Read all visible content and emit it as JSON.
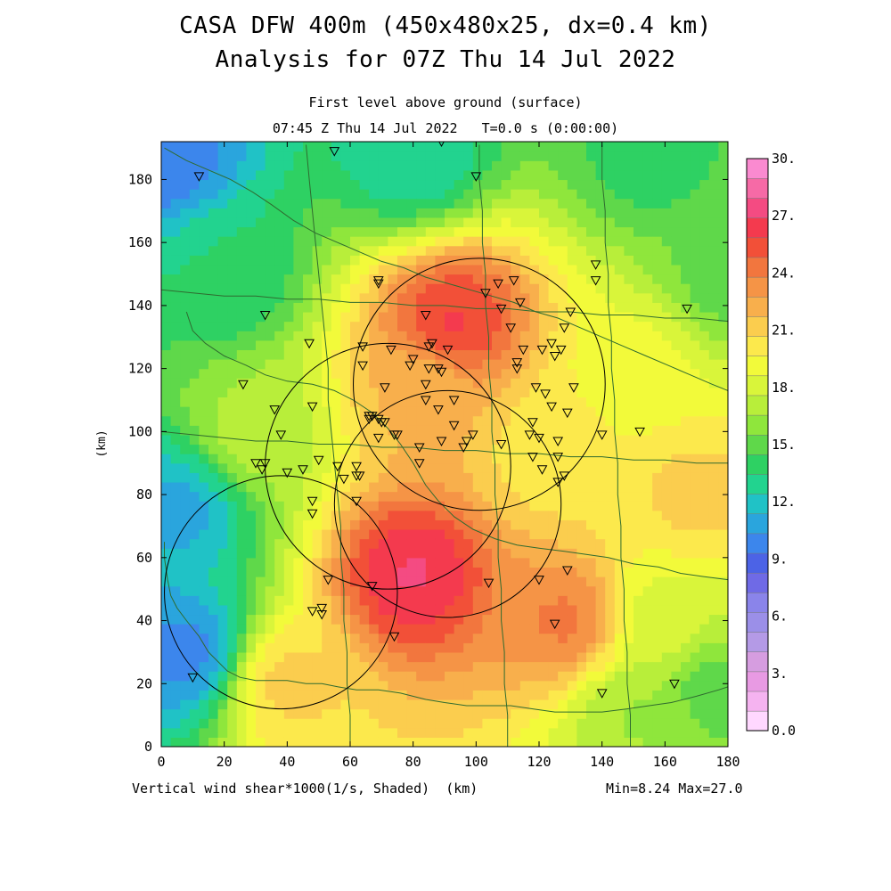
{
  "title_line1": "CASA DFW 400m (450x480x25, dx=0.4 km)",
  "title_line2": "Analysis for 07Z Thu 14 Jul 2022",
  "subtitle_line1": "First level above ground (surface)",
  "subtitle_line2": "07:45 Z Thu 14 Jul 2022   T=0.0 s (0:00:00)",
  "caption": "Vertical wind shear*1000(1/s, Shaded)  (km)",
  "minmax": "Min=8.24 Max=27.0",
  "chart_data": {
    "type": "heatmap",
    "xlabel": "(km)",
    "ylabel": "(km)",
    "xlim": [
      0,
      180
    ],
    "ylim": [
      0,
      192
    ],
    "x_ticks": [
      0,
      20,
      40,
      60,
      80,
      100,
      120,
      140,
      160,
      180
    ],
    "y_ticks": [
      0,
      20,
      40,
      60,
      80,
      100,
      120,
      140,
      160,
      180
    ],
    "colorbar": {
      "labels": [
        "0.0",
        "3.",
        "6.",
        "9.",
        "12.",
        "15.",
        "18.",
        "21.",
        "24.",
        "27.",
        "30."
      ],
      "colors": [
        "#ffd8ff",
        "#f5b3f0",
        "#e89ae3",
        "#d69de0",
        "#b49ae6",
        "#9b8fe8",
        "#8a84ea",
        "#6f6ae6",
        "#4c63e6",
        "#3c86ec",
        "#2aa5dd",
        "#20c2c6",
        "#22d38f",
        "#2ed163",
        "#5fd84a",
        "#8fe63c",
        "#b8ee3a",
        "#d9f53a",
        "#f2fa3a",
        "#fce94c",
        "#fbcd4e",
        "#f8af4c",
        "#f59446",
        "#f2763e",
        "#f25038",
        "#f43a4e",
        "#f44b82",
        "#f66aa6",
        "#fa8ad0"
      ]
    },
    "analysis_field": {
      "name": "Vertical wind shear*1000",
      "units": "1/s",
      "min": 8.24,
      "max": 27.0,
      "background": 17.0,
      "features": [
        {
          "x": 80,
          "y": 55,
          "peak": 27.0
        },
        {
          "x": 93,
          "y": 135,
          "peak": 26.0
        },
        {
          "x": 83,
          "y": 113,
          "peak": 22.0
        },
        {
          "x": 128,
          "y": 40,
          "peak": 24.0
        },
        {
          "x": 125,
          "y": 95,
          "peak": 20.0
        },
        {
          "x": 150,
          "y": 120,
          "peak": 19.0
        },
        {
          "x": 170,
          "y": 80,
          "peak": 21.0
        },
        {
          "x": 160,
          "y": 40,
          "peak": 18.0
        },
        {
          "x": 30,
          "y": 100,
          "peak": 17.0
        },
        {
          "x": 5,
          "y": 75,
          "peak": 11.0
        },
        {
          "x": 8,
          "y": 30,
          "peak": 10.0
        },
        {
          "x": 20,
          "y": 150,
          "peak": 13.5
        },
        {
          "x": 0,
          "y": 188,
          "peak": 9.5
        },
        {
          "x": 80,
          "y": 188,
          "peak": 12.5
        },
        {
          "x": 155,
          "y": 188,
          "peak": 14.0
        },
        {
          "x": 175,
          "y": 18,
          "peak": 15.0
        },
        {
          "x": 150,
          "y": 10,
          "peak": 16.5
        },
        {
          "x": 40,
          "y": 20,
          "peak": 21.0
        },
        {
          "x": 180,
          "y": 150,
          "peak": 15.0
        }
      ]
    },
    "radar_rings": [
      {
        "x": 91,
        "y": 77,
        "radius": 36
      },
      {
        "x": 38,
        "y": 49,
        "radius": 37
      },
      {
        "x": 72,
        "y": 89,
        "radius": 39
      },
      {
        "x": 101,
        "y": 115,
        "radius": 40
      }
    ],
    "stations": [
      [
        12,
        181
      ],
      [
        55,
        189
      ],
      [
        89,
        192
      ],
      [
        100,
        181
      ],
      [
        33,
        137
      ],
      [
        47,
        128
      ],
      [
        56,
        89
      ],
      [
        69,
        148
      ],
      [
        69,
        147
      ],
      [
        73,
        126
      ],
      [
        64,
        121
      ],
      [
        79,
        121
      ],
      [
        71,
        114
      ],
      [
        64,
        127
      ],
      [
        80,
        123
      ],
      [
        84,
        137
      ],
      [
        86,
        128
      ],
      [
        85,
        127
      ],
      [
        85,
        120
      ],
      [
        88,
        120
      ],
      [
        84,
        115
      ],
      [
        84,
        110
      ],
      [
        89,
        119
      ],
      [
        91,
        126
      ],
      [
        103,
        144
      ],
      [
        107,
        147
      ],
      [
        112,
        148
      ],
      [
        114,
        141
      ],
      [
        108,
        139
      ],
      [
        111,
        133
      ],
      [
        113,
        122
      ],
      [
        113,
        120
      ],
      [
        115,
        126
      ],
      [
        121,
        126
      ],
      [
        124,
        128
      ],
      [
        119,
        114
      ],
      [
        122,
        112
      ],
      [
        124,
        108
      ],
      [
        118,
        103
      ],
      [
        120,
        98
      ],
      [
        126,
        97
      ],
      [
        126,
        92
      ],
      [
        118,
        92
      ],
      [
        121,
        88
      ],
      [
        126,
        84
      ],
      [
        128,
        86
      ],
      [
        138,
        153
      ],
      [
        138,
        148
      ],
      [
        130,
        138
      ],
      [
        128,
        133
      ],
      [
        127,
        126
      ],
      [
        125,
        124
      ],
      [
        131,
        114
      ],
      [
        129,
        106
      ],
      [
        117,
        99
      ],
      [
        140,
        99
      ],
      [
        152,
        100
      ],
      [
        167,
        139
      ],
      [
        26,
        115
      ],
      [
        36,
        107
      ],
      [
        48,
        108
      ],
      [
        38,
        99
      ],
      [
        33,
        90
      ],
      [
        32,
        88
      ],
      [
        40,
        87
      ],
      [
        50,
        91
      ],
      [
        45,
        88
      ],
      [
        48,
        78
      ],
      [
        48,
        74
      ],
      [
        53,
        53
      ],
      [
        48,
        43
      ],
      [
        51,
        44
      ],
      [
        67,
        51
      ],
      [
        62,
        86
      ],
      [
        63,
        86
      ],
      [
        62,
        89
      ],
      [
        62,
        78
      ],
      [
        74,
        99
      ],
      [
        66,
        104
      ],
      [
        66,
        105
      ],
      [
        69,
        104
      ],
      [
        69,
        98
      ],
      [
        71,
        103
      ],
      [
        75,
        99
      ],
      [
        82,
        95
      ],
      [
        82,
        90
      ],
      [
        89,
        97
      ],
      [
        96,
        95
      ],
      [
        93,
        102
      ],
      [
        99,
        99
      ],
      [
        97,
        97
      ],
      [
        88,
        107
      ],
      [
        93,
        110
      ],
      [
        70,
        103
      ],
      [
        58,
        85
      ],
      [
        67,
        105
      ],
      [
        74,
        35
      ],
      [
        104,
        52
      ],
      [
        120,
        53
      ],
      [
        129,
        56
      ],
      [
        125,
        39
      ],
      [
        140,
        17
      ],
      [
        163,
        20
      ],
      [
        10,
        22
      ],
      [
        51,
        42
      ],
      [
        30,
        90
      ],
      [
        108,
        96
      ]
    ],
    "boundaries": [
      [
        [
          1,
          65
        ],
        [
          1,
          60
        ],
        [
          2,
          53
        ],
        [
          3,
          48
        ],
        [
          5,
          44
        ],
        [
          8,
          40
        ],
        [
          12,
          35
        ],
        [
          15,
          30
        ],
        [
          18,
          27
        ],
        [
          21,
          24
        ],
        [
          25,
          22
        ],
        [
          30,
          21
        ],
        [
          35,
          21
        ],
        [
          40,
          21
        ],
        [
          46,
          20
        ],
        [
          51,
          20
        ],
        [
          56,
          19
        ],
        [
          62,
          18
        ],
        [
          69,
          18
        ],
        [
          76,
          17
        ],
        [
          84,
          15
        ],
        [
          90,
          14
        ],
        [
          97,
          13
        ],
        [
          104,
          13
        ],
        [
          111,
          13
        ],
        [
          118,
          12
        ],
        [
          125,
          11
        ],
        [
          132,
          11
        ],
        [
          140,
          11
        ],
        [
          148,
          12
        ],
        [
          155,
          13
        ],
        [
          162,
          14
        ],
        [
          170,
          16
        ],
        [
          177,
          18
        ],
        [
          180,
          19
        ]
      ],
      [
        [
          8,
          138
        ],
        [
          10,
          132
        ],
        [
          14,
          128
        ],
        [
          20,
          124
        ],
        [
          27,
          121
        ],
        [
          33,
          118
        ],
        [
          40,
          116
        ],
        [
          48,
          115
        ],
        [
          55,
          113
        ],
        [
          61,
          110
        ],
        [
          67,
          106
        ],
        [
          72,
          101
        ],
        [
          76,
          96
        ],
        [
          80,
          90
        ],
        [
          84,
          83
        ],
        [
          88,
          78
        ],
        [
          93,
          73
        ],
        [
          99,
          69
        ],
        [
          106,
          66
        ],
        [
          113,
          64
        ],
        [
          120,
          63
        ],
        [
          128,
          62
        ],
        [
          135,
          61
        ],
        [
          142,
          60
        ],
        [
          150,
          58
        ],
        [
          158,
          57
        ],
        [
          165,
          55
        ],
        [
          172,
          54
        ],
        [
          180,
          53
        ]
      ],
      [
        [
          1,
          190
        ],
        [
          8,
          186
        ],
        [
          15,
          183
        ],
        [
          22,
          180
        ],
        [
          29,
          176
        ],
        [
          35,
          172
        ],
        [
          42,
          167
        ],
        [
          49,
          163
        ],
        [
          56,
          160
        ],
        [
          63,
          157
        ],
        [
          70,
          154
        ],
        [
          77,
          152
        ],
        [
          84,
          149
        ],
        [
          91,
          147
        ],
        [
          98,
          145
        ],
        [
          105,
          143
        ],
        [
          112,
          141
        ],
        [
          119,
          138
        ],
        [
          126,
          136
        ],
        [
          133,
          133
        ],
        [
          140,
          130
        ],
        [
          147,
          127
        ],
        [
          154,
          124
        ],
        [
          161,
          121
        ],
        [
          168,
          118
        ],
        [
          175,
          115
        ],
        [
          180,
          113
        ]
      ],
      [
        [
          46,
          191
        ],
        [
          47,
          180
        ],
        [
          48,
          170
        ],
        [
          49,
          160
        ],
        [
          50,
          150
        ],
        [
          51,
          140
        ],
        [
          52,
          130
        ],
        [
          53,
          120
        ],
        [
          53,
          110
        ],
        [
          54,
          100
        ],
        [
          55,
          90
        ],
        [
          56,
          80
        ],
        [
          57,
          70
        ],
        [
          57,
          60
        ],
        [
          58,
          50
        ],
        [
          58,
          40
        ],
        [
          59,
          30
        ],
        [
          59,
          20
        ],
        [
          60,
          10
        ],
        [
          60,
          0
        ]
      ],
      [
        [
          101,
          191
        ],
        [
          101,
          180
        ],
        [
          102,
          170
        ],
        [
          102,
          160
        ],
        [
          103,
          150
        ],
        [
          103,
          140
        ],
        [
          104,
          130
        ],
        [
          104,
          120
        ],
        [
          105,
          110
        ],
        [
          105,
          100
        ],
        [
          106,
          90
        ],
        [
          106,
          80
        ],
        [
          107,
          70
        ],
        [
          107,
          60
        ],
        [
          108,
          50
        ],
        [
          108,
          40
        ],
        [
          109,
          30
        ],
        [
          109,
          20
        ],
        [
          110,
          10
        ],
        [
          110,
          0
        ]
      ],
      [
        [
          140,
          191
        ],
        [
          140,
          180
        ],
        [
          141,
          170
        ],
        [
          141,
          160
        ],
        [
          142,
          150
        ],
        [
          142,
          140
        ],
        [
          143,
          130
        ],
        [
          143,
          120
        ],
        [
          144,
          110
        ],
        [
          144,
          100
        ],
        [
          145,
          90
        ],
        [
          145,
          80
        ],
        [
          146,
          70
        ],
        [
          146,
          60
        ],
        [
          147,
          50
        ],
        [
          147,
          40
        ],
        [
          148,
          30
        ],
        [
          148,
          20
        ],
        [
          149,
          10
        ],
        [
          149,
          0
        ]
      ],
      [
        [
          0,
          100
        ],
        [
          10,
          99
        ],
        [
          20,
          98
        ],
        [
          30,
          97
        ],
        [
          40,
          97
        ],
        [
          50,
          96
        ],
        [
          60,
          96
        ],
        [
          70,
          95
        ],
        [
          80,
          95
        ],
        [
          90,
          94
        ],
        [
          100,
          94
        ],
        [
          110,
          93
        ],
        [
          120,
          93
        ],
        [
          130,
          92
        ],
        [
          140,
          92
        ],
        [
          150,
          91
        ],
        [
          160,
          91
        ],
        [
          170,
          90
        ],
        [
          180,
          90
        ]
      ],
      [
        [
          0,
          145
        ],
        [
          10,
          144
        ],
        [
          20,
          143
        ],
        [
          30,
          143
        ],
        [
          40,
          142
        ],
        [
          50,
          142
        ],
        [
          60,
          141
        ],
        [
          70,
          141
        ],
        [
          80,
          140
        ],
        [
          90,
          140
        ],
        [
          100,
          139
        ],
        [
          110,
          139
        ],
        [
          120,
          138
        ],
        [
          130,
          138
        ],
        [
          140,
          137
        ],
        [
          150,
          137
        ],
        [
          160,
          136
        ],
        [
          170,
          136
        ],
        [
          180,
          135
        ]
      ]
    ]
  }
}
